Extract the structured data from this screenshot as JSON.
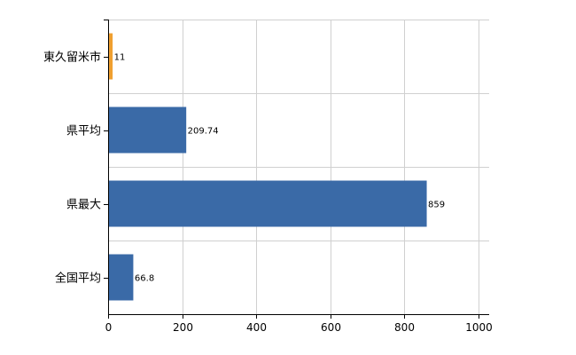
{
  "chart_data": {
    "type": "bar",
    "orientation": "horizontal",
    "categories": [
      "東久留米市",
      "県平均",
      "県最大",
      "全国平均"
    ],
    "values": [
      11,
      209.74,
      859,
      66.8
    ],
    "value_labels": [
      "11",
      "209.74",
      "859",
      "66.8"
    ],
    "bar_colors": [
      "#f0a030",
      "#3a6aa7",
      "#3a6aa7",
      "#3a6aa7"
    ],
    "title": "",
    "xlabel": "",
    "ylabel": "",
    "xlim": [
      0,
      1000
    ],
    "x_ticks": [
      0,
      200,
      400,
      600,
      800,
      1000
    ],
    "x_tick_labels": [
      "0",
      "200",
      "400",
      "600",
      "800",
      "1000"
    ],
    "grid": true,
    "legend": "none"
  }
}
